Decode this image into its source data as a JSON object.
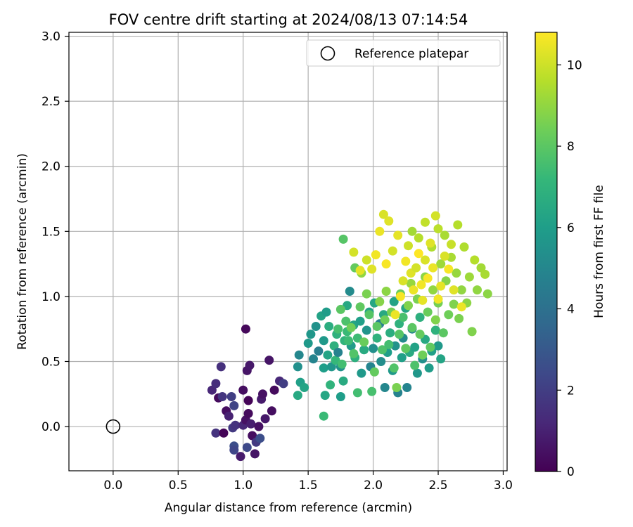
{
  "chart_data": {
    "type": "scatter",
    "title": "FOV centre drift starting at 2024/08/13 07:14:54",
    "xlabel": "Angular distance from reference (arcmin)",
    "ylabel": "Rotation from reference (arcmin)",
    "xlim": [
      -0.34,
      3.03
    ],
    "ylim": [
      -0.34,
      3.03
    ],
    "xticks": [
      "0.0",
      "0.5",
      "1.0",
      "1.5",
      "2.0",
      "2.5",
      "3.0"
    ],
    "yticks": [
      "0.0",
      "0.5",
      "1.0",
      "1.5",
      "2.0",
      "2.5",
      "3.0"
    ],
    "grid": true,
    "legend": {
      "position": "top-right",
      "entries": [
        "Reference platepar"
      ]
    },
    "reference_point": {
      "x": 0.0,
      "y": 0.0,
      "label": "Reference platepar"
    },
    "colorbar": {
      "label": "Hours from first FF file",
      "range": [
        0,
        10.8
      ],
      "ticks": [
        "0",
        "2",
        "4",
        "6",
        "8",
        "10"
      ],
      "colormap": "viridis",
      "colors": [
        "#440154",
        "#482878",
        "#3e4989",
        "#31688e",
        "#26828e",
        "#1f9e89",
        "#35b779",
        "#6ece58",
        "#b5de2b",
        "#fde725"
      ]
    },
    "points": [
      [
        0.76,
        0.28,
        1.2
      ],
      [
        0.79,
        0.33,
        1.4
      ],
      [
        0.79,
        -0.05,
        1.6
      ],
      [
        0.81,
        0.22,
        0.3
      ],
      [
        0.83,
        0.46,
        1.5
      ],
      [
        0.84,
        0.23,
        1.7
      ],
      [
        0.85,
        -0.05,
        0.1
      ],
      [
        0.87,
        0.12,
        0.4
      ],
      [
        0.89,
        0.08,
        1.0
      ],
      [
        0.91,
        0.23,
        2.0
      ],
      [
        0.92,
        -0.01,
        1.8
      ],
      [
        0.93,
        0.16,
        2.2
      ],
      [
        0.93,
        -0.15,
        2.6
      ],
      [
        0.93,
        -0.18,
        2.3
      ],
      [
        0.94,
        0.01,
        1.6
      ],
      [
        0.98,
        -0.23,
        0.8
      ],
      [
        1.0,
        0.28,
        0.4
      ],
      [
        1.0,
        0.01,
        1.2
      ],
      [
        1.02,
        0.05,
        0.5
      ],
      [
        1.02,
        0.75,
        0.2
      ],
      [
        1.03,
        0.43,
        0.6
      ],
      [
        1.03,
        -0.16,
        2.4
      ],
      [
        1.04,
        0.1,
        0.3
      ],
      [
        1.04,
        0.2,
        0.1
      ],
      [
        1.05,
        0.47,
        0.7
      ],
      [
        1.06,
        0.02,
        0.9
      ],
      [
        1.07,
        -0.07,
        0.4
      ],
      [
        1.09,
        -0.21,
        0.6
      ],
      [
        1.1,
        -0.12,
        1.8
      ],
      [
        1.12,
        0.0,
        0.5
      ],
      [
        1.13,
        -0.09,
        2.6
      ],
      [
        1.14,
        0.21,
        0.8
      ],
      [
        1.15,
        0.25,
        0.5
      ],
      [
        1.17,
        0.06,
        0.7
      ],
      [
        1.2,
        0.51,
        0.6
      ],
      [
        1.22,
        0.12,
        0.4
      ],
      [
        1.24,
        0.28,
        0.3
      ],
      [
        1.28,
        0.35,
        1.2
      ],
      [
        1.31,
        0.33,
        2.0
      ],
      [
        1.42,
        0.46,
        5.4
      ],
      [
        1.42,
        0.24,
        6.5
      ],
      [
        1.43,
        0.55,
        5.0
      ],
      [
        1.44,
        0.34,
        6.1
      ],
      [
        1.47,
        0.3,
        6.3
      ],
      [
        1.5,
        0.64,
        5.8
      ],
      [
        1.52,
        0.71,
        5.7
      ],
      [
        1.54,
        0.52,
        4.9
      ],
      [
        1.56,
        0.77,
        5.5
      ],
      [
        1.58,
        0.58,
        4.6
      ],
      [
        1.6,
        0.85,
        6.2
      ],
      [
        1.62,
        0.66,
        5.8
      ],
      [
        1.62,
        0.45,
        6.0
      ],
      [
        1.63,
        0.24,
        6.4
      ],
      [
        1.64,
        0.88,
        5.9
      ],
      [
        1.65,
        0.55,
        6.3
      ],
      [
        1.66,
        0.77,
        6.7
      ],
      [
        1.67,
        0.32,
        7.0
      ],
      [
        1.68,
        0.46,
        5.7
      ],
      [
        1.7,
        0.62,
        6.8
      ],
      [
        1.71,
        0.51,
        7.2
      ],
      [
        1.72,
        0.71,
        6.9
      ],
      [
        1.73,
        0.57,
        4.8
      ],
      [
        1.75,
        0.46,
        5.5
      ],
      [
        1.75,
        0.23,
        6.0
      ],
      [
        1.77,
        0.35,
        6.6
      ],
      [
        1.78,
        0.66,
        7.0
      ],
      [
        1.8,
        0.93,
        6.5
      ],
      [
        1.8,
        0.73,
        7.3
      ],
      [
        1.82,
        1.04,
        5.2
      ],
      [
        1.83,
        0.62,
        5.9
      ],
      [
        1.85,
        0.78,
        6.3
      ],
      [
        1.86,
        0.53,
        6.8
      ],
      [
        1.88,
        0.68,
        7.4
      ],
      [
        1.9,
        0.81,
        6.1
      ],
      [
        1.91,
        0.41,
        5.8
      ],
      [
        1.93,
        0.59,
        6.6
      ],
      [
        1.95,
        0.74,
        5.6
      ],
      [
        1.97,
        0.88,
        6.2
      ],
      [
        1.98,
        0.46,
        4.9
      ],
      [
        2.0,
        0.6,
        5.4
      ],
      [
        2.01,
        0.95,
        6.4
      ],
      [
        2.03,
        0.68,
        6.9
      ],
      [
        2.05,
        0.79,
        4.7
      ],
      [
        2.06,
        0.5,
        5.3
      ],
      [
        2.08,
        0.86,
        6.5
      ],
      [
        2.09,
        0.3,
        5.0
      ],
      [
        2.11,
        0.57,
        6.0
      ],
      [
        2.13,
        0.72,
        6.7
      ],
      [
        2.15,
        0.43,
        5.8
      ],
      [
        2.16,
        0.96,
        6.2
      ],
      [
        2.17,
        0.62,
        5.5
      ],
      [
        2.19,
        0.26,
        4.8
      ],
      [
        2.2,
        0.79,
        6.9
      ],
      [
        2.22,
        0.53,
        6.1
      ],
      [
        2.23,
        0.68,
        5.2
      ],
      [
        2.25,
        0.91,
        6.4
      ],
      [
        2.26,
        0.3,
        4.9
      ],
      [
        2.28,
        0.57,
        6.6
      ],
      [
        2.3,
        0.75,
        5.0
      ],
      [
        2.32,
        0.61,
        6.2
      ],
      [
        2.34,
        0.41,
        5.7
      ],
      [
        2.36,
        0.84,
        6.8
      ],
      [
        2.38,
        0.52,
        5.4
      ],
      [
        2.4,
        0.67,
        6.5
      ],
      [
        2.43,
        0.45,
        5.9
      ],
      [
        2.45,
        0.58,
        6.1
      ],
      [
        2.48,
        0.74,
        6.9
      ],
      [
        2.5,
        0.62,
        5.8
      ],
      [
        2.52,
        0.52,
        6.3
      ],
      [
        1.62,
        0.08,
        7.3
      ],
      [
        1.73,
        0.75,
        7.6
      ],
      [
        1.75,
        0.9,
        8.0
      ],
      [
        1.76,
        0.48,
        7.5
      ],
      [
        1.77,
        1.44,
        7.9
      ],
      [
        1.79,
        0.81,
        7.7
      ],
      [
        1.81,
        0.66,
        7.4
      ],
      [
        1.83,
        0.76,
        8.4
      ],
      [
        1.85,
        0.56,
        7.8
      ],
      [
        1.86,
        1.22,
        8.2
      ],
      [
        1.88,
        0.26,
        7.5
      ],
      [
        1.9,
        0.92,
        8.1
      ],
      [
        1.91,
        1.18,
        9.0
      ],
      [
        1.93,
        0.65,
        8.3
      ],
      [
        1.95,
        1.02,
        8.6
      ],
      [
        1.97,
        0.86,
        7.9
      ],
      [
        1.99,
        0.27,
        7.6
      ],
      [
        2.01,
        0.42,
        8.2
      ],
      [
        2.03,
        0.77,
        8.0
      ],
      [
        2.05,
        0.96,
        8.8
      ],
      [
        2.07,
        0.59,
        7.7
      ],
      [
        2.09,
        0.82,
        8.4
      ],
      [
        2.1,
        1.04,
        8.9
      ],
      [
        2.12,
        0.63,
        7.5
      ],
      [
        2.14,
        0.88,
        8.5
      ],
      [
        2.16,
        0.45,
        7.8
      ],
      [
        2.18,
        0.3,
        8.6
      ],
      [
        2.2,
        0.71,
        7.9
      ],
      [
        2.21,
        1.02,
        8.3
      ],
      [
        2.23,
        0.84,
        7.6
      ],
      [
        2.25,
        0.6,
        8.1
      ],
      [
        2.27,
        0.93,
        8.7
      ],
      [
        2.29,
        1.1,
        9.1
      ],
      [
        2.3,
        0.76,
        8.0
      ],
      [
        2.32,
        0.47,
        7.7
      ],
      [
        2.34,
        0.98,
        8.6
      ],
      [
        2.36,
        0.71,
        8.2
      ],
      [
        2.38,
        0.55,
        8.4
      ],
      [
        2.4,
        1.15,
        8.9
      ],
      [
        2.42,
        0.88,
        8.3
      ],
      [
        2.44,
        0.61,
        8.1
      ],
      [
        2.46,
        1.05,
        9.0
      ],
      [
        2.48,
        0.82,
        8.7
      ],
      [
        2.5,
        0.95,
        8.5
      ],
      [
        2.52,
        1.25,
        9.2
      ],
      [
        2.54,
        0.72,
        8.0
      ],
      [
        2.56,
        1.12,
        8.8
      ],
      [
        2.58,
        0.86,
        8.4
      ],
      [
        2.6,
        1.3,
        9.4
      ],
      [
        2.62,
        0.94,
        8.7
      ],
      [
        2.64,
        1.18,
        9.1
      ],
      [
        2.66,
        0.83,
        8.6
      ],
      [
        2.68,
        1.05,
        9.0
      ],
      [
        2.7,
        1.38,
        9.5
      ],
      [
        2.72,
        0.95,
        8.9
      ],
      [
        2.74,
        1.15,
        9.2
      ],
      [
        2.76,
        0.73,
        8.7
      ],
      [
        2.78,
        1.28,
        9.6
      ],
      [
        2.8,
        1.05,
        9.0
      ],
      [
        2.83,
        1.22,
        9.3
      ],
      [
        2.86,
        1.17,
        9.4
      ],
      [
        2.88,
        1.02,
        8.9
      ],
      [
        2.3,
        1.5,
        9.3
      ],
      [
        2.35,
        1.45,
        9.6
      ],
      [
        2.4,
        1.57,
        9.8
      ],
      [
        2.45,
        1.38,
        9.5
      ],
      [
        2.5,
        1.52,
        9.7
      ],
      [
        2.55,
        1.47,
        9.4
      ],
      [
        2.6,
        1.4,
        9.9
      ],
      [
        2.65,
        1.55,
        9.6
      ],
      [
        1.85,
        1.34,
        10.1
      ],
      [
        1.9,
        1.2,
        10.4
      ],
      [
        1.95,
        1.28,
        10.0
      ],
      [
        1.99,
        1.21,
        10.3
      ],
      [
        2.02,
        1.32,
        10.6
      ],
      [
        2.05,
        1.5,
        10.5
      ],
      [
        2.08,
        1.63,
        10.2
      ],
      [
        2.1,
        1.25,
        10.7
      ],
      [
        2.12,
        1.58,
        10.3
      ],
      [
        2.15,
        1.35,
        10.1
      ],
      [
        2.17,
        0.86,
        10.5
      ],
      [
        2.19,
        1.47,
        10.4
      ],
      [
        2.21,
        1.0,
        10.7
      ],
      [
        2.23,
        1.12,
        10.2
      ],
      [
        2.25,
        1.27,
        10.6
      ],
      [
        2.27,
        1.39,
        10.0
      ],
      [
        2.29,
        1.18,
        10.3
      ],
      [
        2.31,
        1.05,
        10.5
      ],
      [
        2.33,
        1.22,
        10.1
      ],
      [
        2.35,
        1.33,
        10.8
      ],
      [
        2.37,
        1.09,
        10.6
      ],
      [
        2.38,
        0.97,
        10.4
      ],
      [
        2.4,
        1.28,
        10.2
      ],
      [
        2.42,
        1.14,
        10.7
      ],
      [
        2.44,
        1.41,
        10.3
      ],
      [
        2.46,
        1.22,
        10.5
      ],
      [
        2.48,
        1.62,
        10.1
      ],
      [
        2.5,
        0.98,
        10.6
      ],
      [
        2.52,
        1.08,
        10.4
      ],
      [
        2.55,
        1.31,
        10.2
      ],
      [
        2.58,
        1.21,
        10.7
      ],
      [
        2.62,
        1.05,
        10.3
      ],
      [
        2.68,
        0.92,
        10.5
      ]
    ]
  }
}
